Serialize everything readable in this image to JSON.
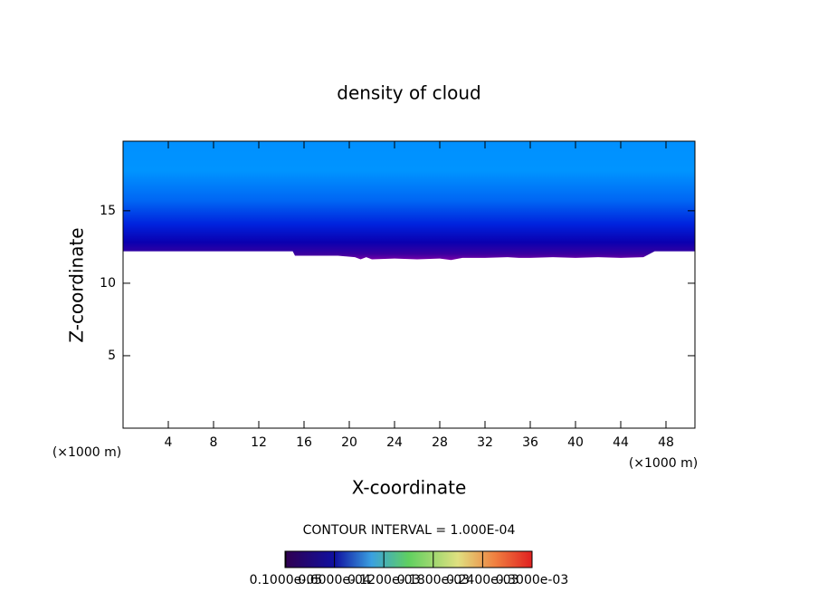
{
  "chart_data": {
    "type": "contour",
    "title": "density of cloud",
    "x_label": "X-coordinate",
    "y_label": "Z-coordinate",
    "x_unit": "(×1000 m)",
    "y_unit": "(×1000 m)",
    "contour_interval": "CONTOUR INTERVAL = 1.000E-04",
    "xlim": [
      0,
      50.56
    ],
    "ylim": [
      0,
      19.8
    ],
    "xticks": [
      4,
      8,
      12,
      16,
      20,
      24,
      28,
      32,
      36,
      40,
      44,
      48
    ],
    "yticks": [
      5,
      10,
      15
    ],
    "x": [
      0,
      15,
      15.2,
      19,
      20.5,
      21,
      21.5,
      22,
      24,
      26,
      28,
      29,
      30,
      32,
      34,
      35,
      36,
      38,
      40,
      42,
      44,
      46,
      47,
      50.56
    ],
    "cloud_base": [
      12.2,
      12.2,
      11.9,
      11.9,
      11.8,
      11.65,
      11.8,
      11.65,
      11.7,
      11.65,
      11.7,
      11.6,
      11.75,
      11.75,
      11.8,
      11.75,
      11.75,
      11.8,
      11.75,
      11.8,
      11.75,
      11.8,
      12.2,
      12.2
    ],
    "colorbar_lim": [
      0,
      0.0003
    ],
    "colorbar_ticks": [
      {
        "value": 1e-06,
        "label": "0.1000e-05"
      },
      {
        "value": 6e-05,
        "label": "0.6000e-04"
      },
      {
        "value": 0.00012,
        "label": "0.1200e-03"
      },
      {
        "value": 0.00018,
        "label": "0.1800e-03"
      },
      {
        "value": 0.00024,
        "label": "0.2400e-03"
      },
      {
        "value": 0.0003,
        "label": "0.3000e-03"
      }
    ]
  }
}
